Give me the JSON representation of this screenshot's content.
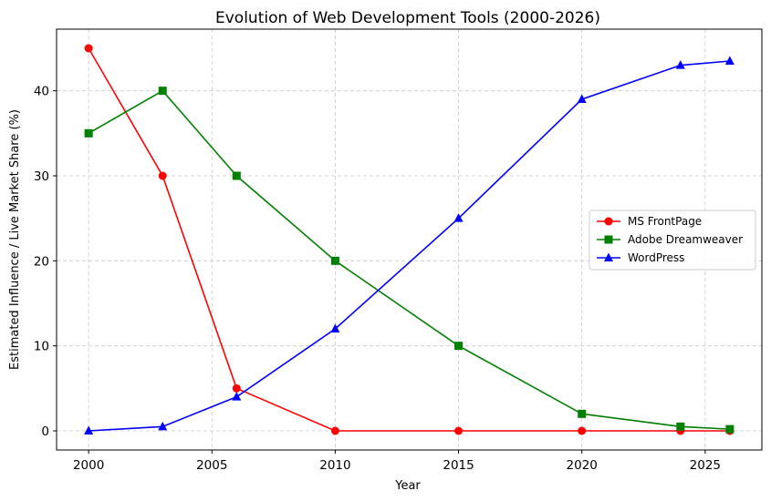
{
  "chart_data": {
    "type": "line",
    "title": "Evolution of Web Development Tools (2000-2026)",
    "xlabel": "Year",
    "ylabel": "Estimated Influence / Live Market Share (%)",
    "x": [
      2000,
      2003,
      2006,
      2010,
      2015,
      2020,
      2024,
      2026
    ],
    "xlim": [
      1998.7,
      2027.3
    ],
    "ylim": [
      -2.25,
      47.25
    ],
    "xticks": [
      2000,
      2005,
      2010,
      2015,
      2020,
      2025
    ],
    "yticks": [
      0,
      10,
      20,
      30,
      40
    ],
    "grid": true,
    "legend_position": "center-right",
    "series": [
      {
        "name": "MS FrontPage",
        "color": "#ff0000",
        "marker": "circle",
        "values": [
          45,
          30,
          5,
          0,
          0,
          0,
          0,
          0
        ]
      },
      {
        "name": "Adobe Dreamweaver",
        "color": "#008000",
        "marker": "square",
        "values": [
          35,
          40,
          30,
          20,
          10,
          2,
          0.5,
          0.2
        ]
      },
      {
        "name": "WordPress",
        "color": "#0000ff",
        "marker": "triangle",
        "values": [
          0,
          0.5,
          4,
          12,
          25,
          39,
          43,
          43.5
        ]
      }
    ]
  }
}
